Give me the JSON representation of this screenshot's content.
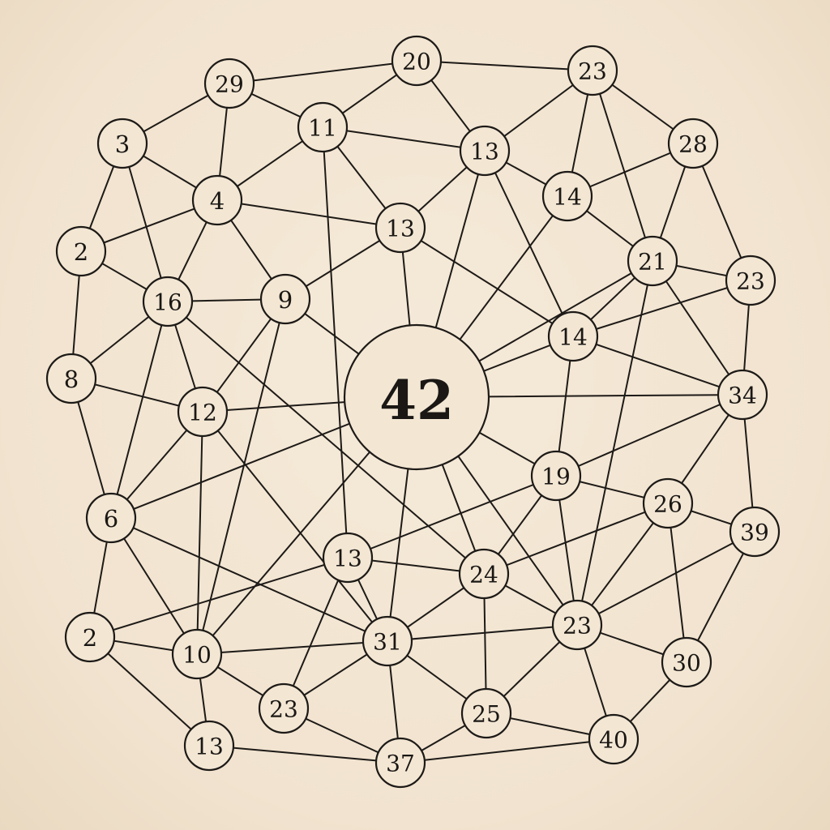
{
  "diagram": {
    "type": "network-graph",
    "center_node": "n0",
    "colors": {
      "background": "#f2e6d3",
      "ink": "#1d1a17",
      "node_fill": "#f3e7d4"
    },
    "nodes": [
      {
        "id": "n0",
        "label": "42"
      },
      {
        "id": "n1",
        "label": "20"
      },
      {
        "id": "n2",
        "label": "23"
      },
      {
        "id": "n3",
        "label": "29"
      },
      {
        "id": "n4",
        "label": "11"
      },
      {
        "id": "n5",
        "label": "3"
      },
      {
        "id": "n6",
        "label": "13"
      },
      {
        "id": "n7",
        "label": "28"
      },
      {
        "id": "n8",
        "label": "4"
      },
      {
        "id": "n9",
        "label": "14"
      },
      {
        "id": "n10",
        "label": "13"
      },
      {
        "id": "n11",
        "label": "2"
      },
      {
        "id": "n12",
        "label": "21"
      },
      {
        "id": "n13",
        "label": "23"
      },
      {
        "id": "n14",
        "label": "16"
      },
      {
        "id": "n15",
        "label": "9"
      },
      {
        "id": "n16",
        "label": "14"
      },
      {
        "id": "n17",
        "label": "8"
      },
      {
        "id": "n18",
        "label": "34"
      },
      {
        "id": "n19",
        "label": "12"
      },
      {
        "id": "n20",
        "label": "19"
      },
      {
        "id": "n21",
        "label": "26"
      },
      {
        "id": "n22",
        "label": "6"
      },
      {
        "id": "n23",
        "label": "39"
      },
      {
        "id": "n24",
        "label": "13"
      },
      {
        "id": "n25",
        "label": "24"
      },
      {
        "id": "n26",
        "label": "2"
      },
      {
        "id": "n27",
        "label": "23"
      },
      {
        "id": "n28",
        "label": "31"
      },
      {
        "id": "n29",
        "label": "10"
      },
      {
        "id": "n30",
        "label": "30"
      },
      {
        "id": "n31",
        "label": "23"
      },
      {
        "id": "n32",
        "label": "25"
      },
      {
        "id": "n33",
        "label": "40"
      },
      {
        "id": "n34",
        "label": "13"
      },
      {
        "id": "n35",
        "label": "37"
      }
    ],
    "edges": [
      [
        "n3",
        "n1"
      ],
      [
        "n1",
        "n2"
      ],
      [
        "n1",
        "n4"
      ],
      [
        "n1",
        "n6"
      ],
      [
        "n3",
        "n5"
      ],
      [
        "n3",
        "n8"
      ],
      [
        "n3",
        "n4"
      ],
      [
        "n4",
        "n8"
      ],
      [
        "n4",
        "n6"
      ],
      [
        "n4",
        "n10"
      ],
      [
        "n4",
        "n24"
      ],
      [
        "n5",
        "n8"
      ],
      [
        "n5",
        "n11"
      ],
      [
        "n5",
        "n14"
      ],
      [
        "n2",
        "n6"
      ],
      [
        "n2",
        "n9"
      ],
      [
        "n2",
        "n7"
      ],
      [
        "n2",
        "n12"
      ],
      [
        "n6",
        "n9"
      ],
      [
        "n6",
        "n10"
      ],
      [
        "n6",
        "n0"
      ],
      [
        "n6",
        "n16"
      ],
      [
        "n7",
        "n9"
      ],
      [
        "n7",
        "n12"
      ],
      [
        "n7",
        "n13"
      ],
      [
        "n8",
        "n11"
      ],
      [
        "n8",
        "n14"
      ],
      [
        "n8",
        "n15"
      ],
      [
        "n8",
        "n10"
      ],
      [
        "n9",
        "n12"
      ],
      [
        "n9",
        "n0"
      ],
      [
        "n10",
        "n15"
      ],
      [
        "n10",
        "n0"
      ],
      [
        "n10",
        "n16"
      ],
      [
        "n11",
        "n14"
      ],
      [
        "n11",
        "n17"
      ],
      [
        "n12",
        "n13"
      ],
      [
        "n12",
        "n16"
      ],
      [
        "n12",
        "n18"
      ],
      [
        "n12",
        "n0"
      ],
      [
        "n12",
        "n31"
      ],
      [
        "n13",
        "n16"
      ],
      [
        "n13",
        "n18"
      ],
      [
        "n14",
        "n15"
      ],
      [
        "n14",
        "n17"
      ],
      [
        "n14",
        "n19"
      ],
      [
        "n14",
        "n22"
      ],
      [
        "n14",
        "n25"
      ],
      [
        "n15",
        "n19"
      ],
      [
        "n15",
        "n0"
      ],
      [
        "n15",
        "n29"
      ],
      [
        "n16",
        "n0"
      ],
      [
        "n16",
        "n18"
      ],
      [
        "n16",
        "n20"
      ],
      [
        "n17",
        "n19"
      ],
      [
        "n17",
        "n22"
      ],
      [
        "n18",
        "n20"
      ],
      [
        "n18",
        "n21"
      ],
      [
        "n18",
        "n23"
      ],
      [
        "n18",
        "n0"
      ],
      [
        "n19",
        "n0"
      ],
      [
        "n19",
        "n22"
      ],
      [
        "n19",
        "n29"
      ],
      [
        "n19",
        "n28"
      ],
      [
        "n20",
        "n0"
      ],
      [
        "n20",
        "n21"
      ],
      [
        "n20",
        "n24"
      ],
      [
        "n20",
        "n25"
      ],
      [
        "n20",
        "n31"
      ],
      [
        "n21",
        "n23"
      ],
      [
        "n21",
        "n25"
      ],
      [
        "n21",
        "n30"
      ],
      [
        "n21",
        "n31"
      ],
      [
        "n22",
        "n0"
      ],
      [
        "n22",
        "n26"
      ],
      [
        "n22",
        "n29"
      ],
      [
        "n22",
        "n28"
      ],
      [
        "n23",
        "n31"
      ],
      [
        "n23",
        "n30"
      ],
      [
        "n24",
        "n25"
      ],
      [
        "n24",
        "n26"
      ],
      [
        "n24",
        "n27"
      ],
      [
        "n24",
        "n28"
      ],
      [
        "n25",
        "n0"
      ],
      [
        "n25",
        "n28"
      ],
      [
        "n25",
        "n31"
      ],
      [
        "n25",
        "n32"
      ],
      [
        "n26",
        "n29"
      ],
      [
        "n26",
        "n34"
      ],
      [
        "n27",
        "n28"
      ],
      [
        "n27",
        "n29"
      ],
      [
        "n27",
        "n35"
      ],
      [
        "n28",
        "n0"
      ],
      [
        "n28",
        "n29"
      ],
      [
        "n28",
        "n31"
      ],
      [
        "n28",
        "n32"
      ],
      [
        "n28",
        "n35"
      ],
      [
        "n29",
        "n0"
      ],
      [
        "n29",
        "n34"
      ],
      [
        "n31",
        "n0"
      ],
      [
        "n31",
        "n30"
      ],
      [
        "n31",
        "n32"
      ],
      [
        "n31",
        "n33"
      ],
      [
        "n30",
        "n33"
      ],
      [
        "n32",
        "n33"
      ],
      [
        "n32",
        "n35"
      ],
      [
        "n33",
        "n35"
      ],
      [
        "n34",
        "n35"
      ]
    ]
  }
}
